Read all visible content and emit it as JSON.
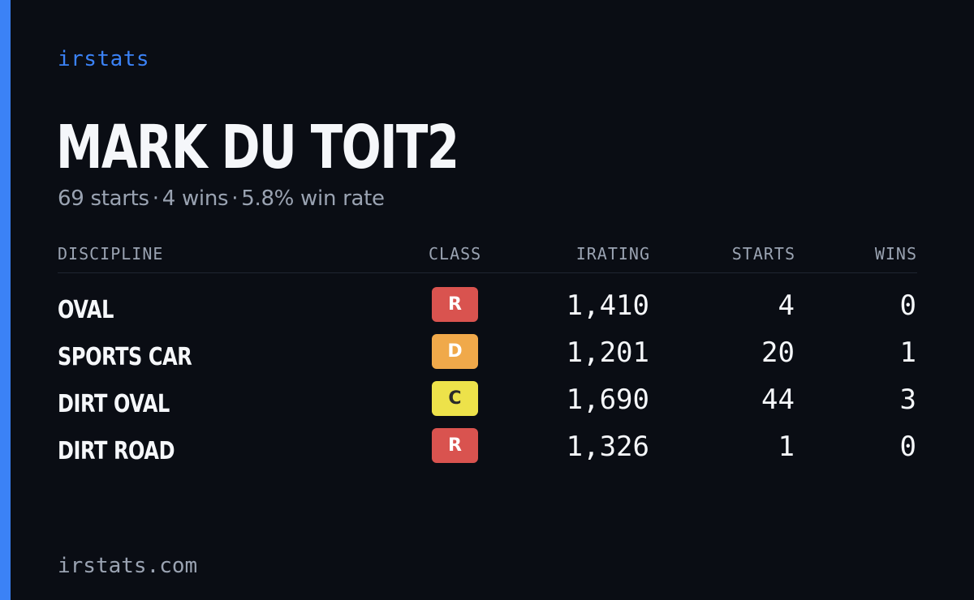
{
  "brand": "irstats",
  "driver": {
    "name": "MARK DU TOIT2",
    "starts_text": "69 starts",
    "wins_text": "4 wins",
    "win_rate_text": "5.8% win rate",
    "separator": "·"
  },
  "table": {
    "headers": {
      "discipline": "DISCIPLINE",
      "class": "CLASS",
      "irating": "IRATING",
      "starts": "STARTS",
      "wins": "WINS"
    },
    "rows": [
      {
        "discipline": "OVAL",
        "class": "R",
        "class_bg": "#d9534f",
        "class_fg": "#ffffff",
        "irating": "1,410",
        "starts": "4",
        "wins": "0"
      },
      {
        "discipline": "SPORTS CAR",
        "class": "D",
        "class_bg": "#f0a94a",
        "class_fg": "#ffffff",
        "irating": "1,201",
        "starts": "20",
        "wins": "1"
      },
      {
        "discipline": "DIRT OVAL",
        "class": "C",
        "class_bg": "#ede24a",
        "class_fg": "#2a2a2a",
        "irating": "1,690",
        "starts": "44",
        "wins": "3"
      },
      {
        "discipline": "DIRT ROAD",
        "class": "R",
        "class_bg": "#d9534f",
        "class_fg": "#ffffff",
        "irating": "1,326",
        "starts": "1",
        "wins": "0"
      }
    ]
  },
  "footer": "irstats.com",
  "colors": {
    "background": "#0a0d14",
    "accent": "#3b82f6",
    "text": "#f5f7fa",
    "muted": "#9aa3b2"
  }
}
